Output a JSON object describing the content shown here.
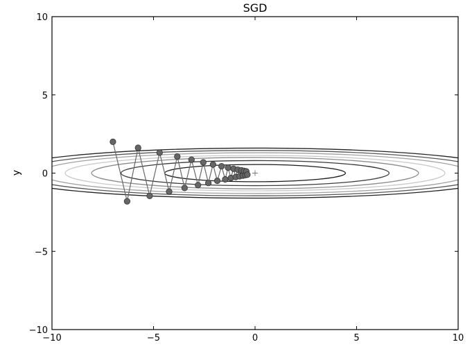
{
  "chart_data": {
    "type": "line",
    "title": "SGD",
    "xlabel": "",
    "ylabel": "y",
    "xlim": [
      -10,
      10
    ],
    "ylim": [
      -10,
      10
    ],
    "xticks": [
      -10,
      -5,
      0,
      5,
      10
    ],
    "yticks": [
      -10,
      -5,
      0,
      5,
      10
    ],
    "xtick_labels": [
      "−10",
      "−5",
      "0",
      "5",
      "10"
    ],
    "ytick_labels": [
      "−10",
      "−5",
      "0",
      "5",
      "10"
    ],
    "grid": false,
    "legend": "none",
    "contour": {
      "function": "x^2/20 + y^2",
      "minimum_marker": "+",
      "levels": [
        {
          "a": 4.45,
          "b": 0.55,
          "color": "#1a1a1a"
        },
        {
          "a": 6.6,
          "b": 0.8,
          "color": "#3a3a3a"
        },
        {
          "a": 8.05,
          "b": 1.0,
          "color": "#8c8c8c"
        },
        {
          "a": 9.35,
          "b": 1.13,
          "color": "#c9c9c9"
        },
        {
          "a": 10.6,
          "b": 1.3,
          "color": "#a0a0a0"
        },
        {
          "a": 11.6,
          "b": 1.45,
          "color": "#555555"
        },
        {
          "a": 12.6,
          "b": 1.6,
          "color": "#222222"
        }
      ]
    },
    "series": [
      {
        "color": "#666666",
        "x": [
          -7.0,
          -6.3,
          -5.76,
          -5.19,
          -4.7,
          -4.23,
          -3.83,
          -3.47,
          -3.13,
          -2.81,
          -2.55,
          -2.3,
          -2.07,
          -1.86,
          -1.65,
          -1.47,
          -1.33,
          -1.19,
          -1.06,
          -0.95,
          -0.85,
          -0.76,
          -0.67,
          -0.6,
          -0.54,
          -0.48,
          -0.43,
          -0.38
        ],
        "y": [
          2.0,
          -1.8,
          1.62,
          -1.46,
          1.31,
          -1.18,
          1.06,
          -0.95,
          0.86,
          -0.77,
          0.69,
          -0.63,
          0.55,
          -0.49,
          0.44,
          -0.4,
          0.35,
          -0.31,
          0.28,
          -0.25,
          0.22,
          -0.2,
          0.18,
          -0.16,
          0.14,
          -0.13,
          0.11,
          -0.1
        ]
      }
    ]
  }
}
